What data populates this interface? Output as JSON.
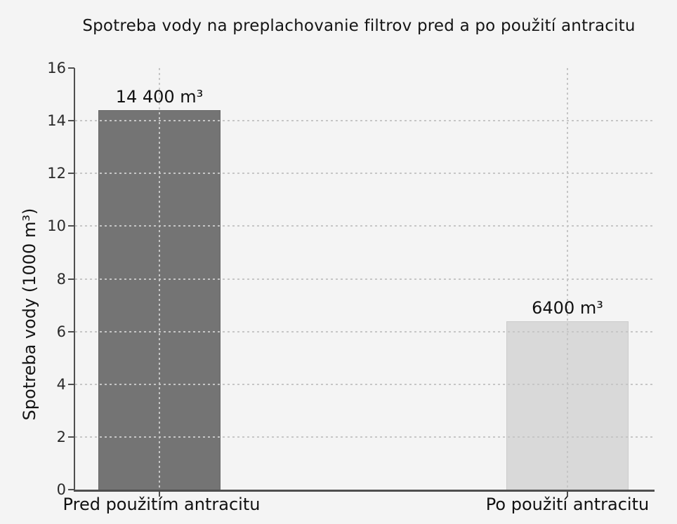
{
  "chart_data": {
    "type": "bar",
    "title": "Spotreba vody na preplachovanie filtrov pred a po použití antracitu",
    "ylabel": "Spotreba vody (1000 m³)",
    "xlabel": "",
    "categories": [
      "Pred použitím antracitu",
      "Po použití antracitu"
    ],
    "values": [
      14.4,
      6.4
    ],
    "value_labels": [
      "14 400 m³",
      "6400 m³"
    ],
    "units": "1000 m³",
    "ylim": [
      0,
      16
    ],
    "yticks": [
      0,
      2,
      4,
      6,
      8,
      10,
      12,
      14,
      16
    ],
    "legend_position": "none",
    "grid": {
      "horizontal": true,
      "vertical_at_bar_centers": true,
      "style": "dashed"
    },
    "bar_colors": [
      "#747474",
      "#d9d9d9"
    ]
  },
  "style": {
    "background": "#f4f4f4",
    "axis_color": "#4f4f4f",
    "grid_color": "#c6c6c6",
    "text_color": "#151515"
  }
}
